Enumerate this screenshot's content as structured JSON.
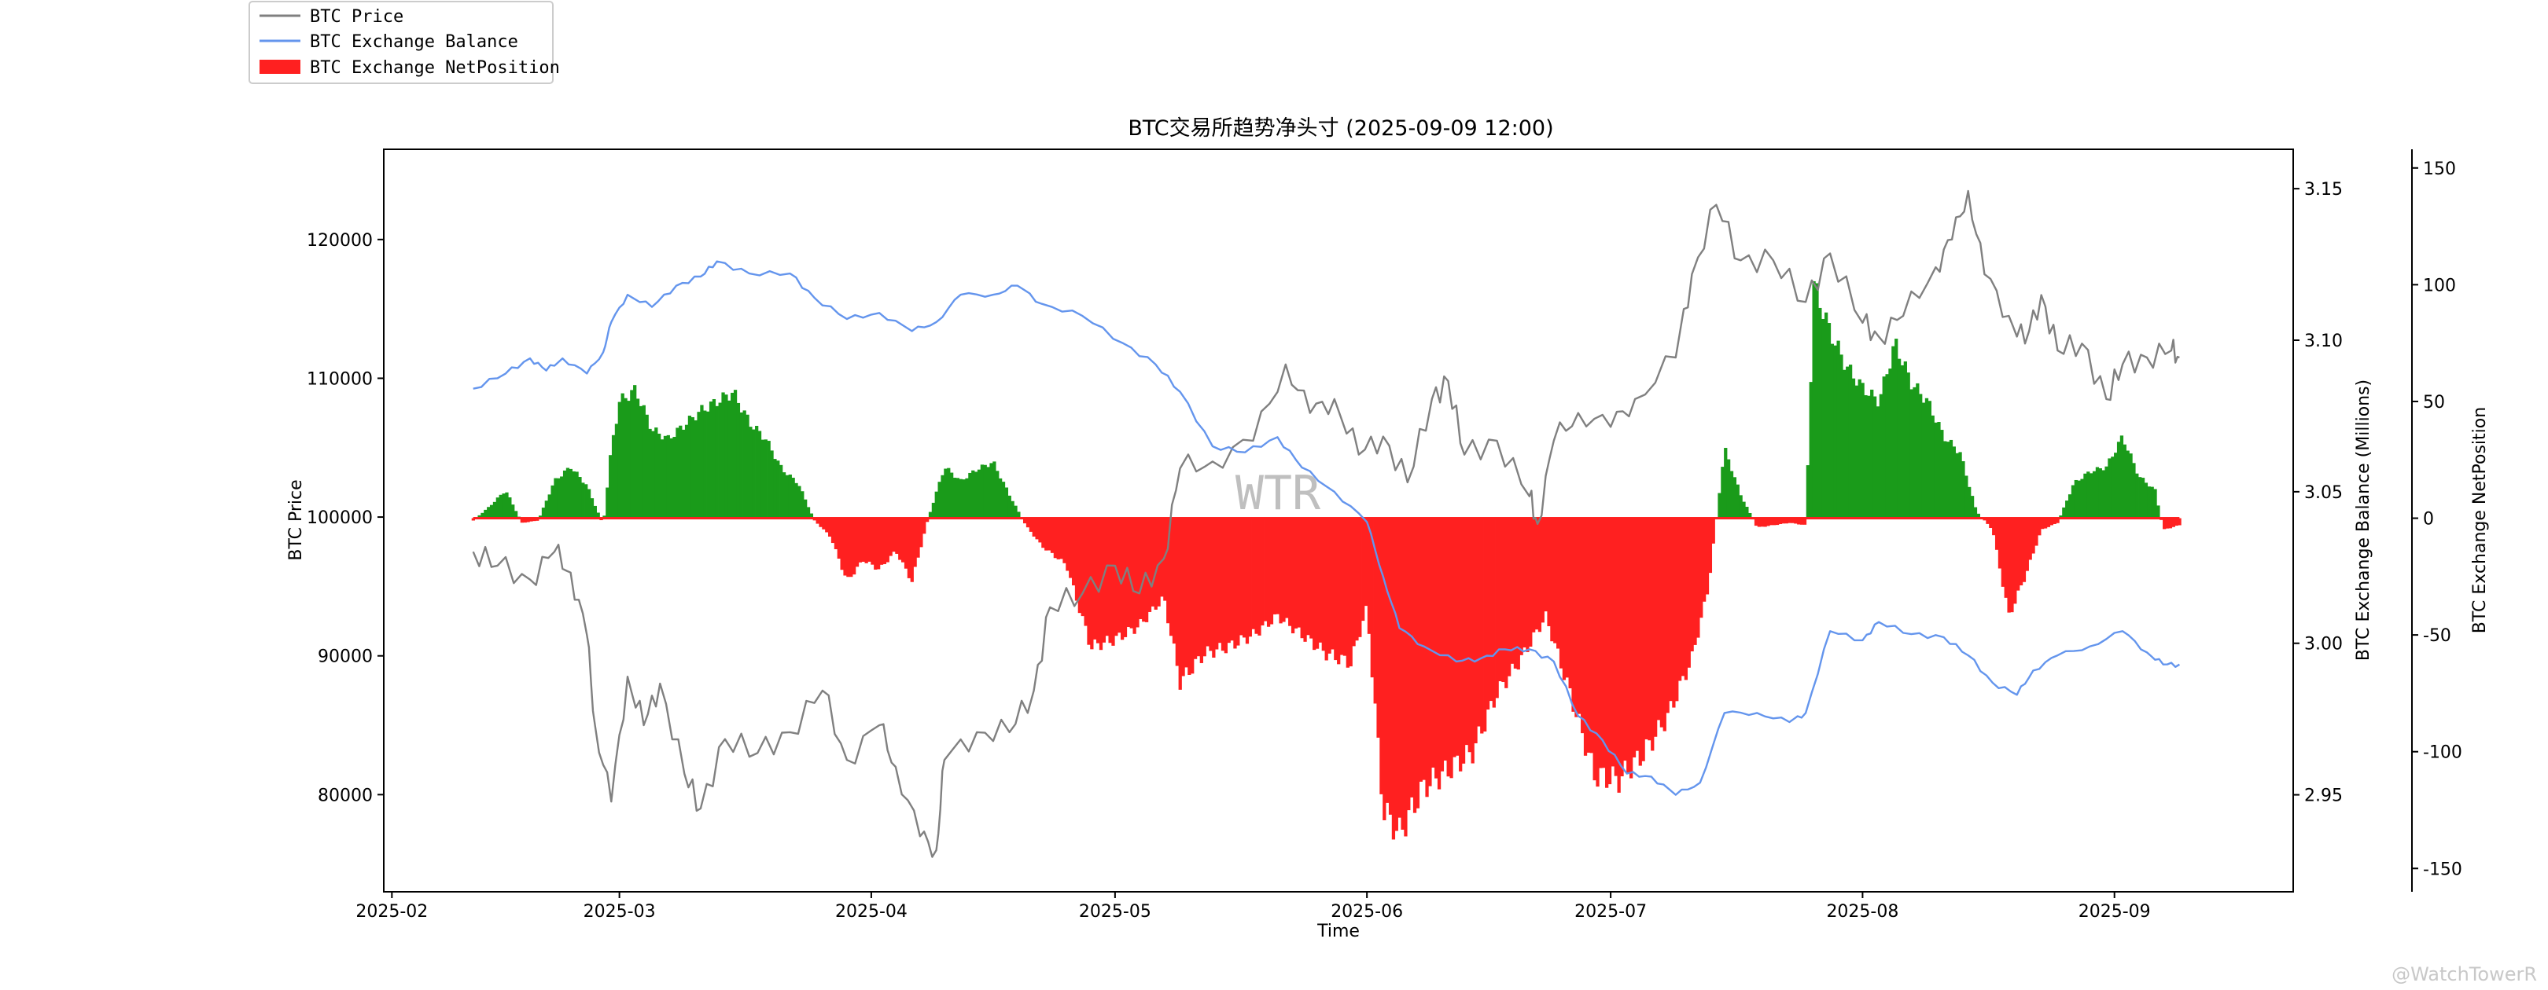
{
  "watermark_center": "WTR",
  "watermark_corner": "@WatchTowerR",
  "chart_data": {
    "type": "line",
    "title": "BTC交易所趋势净头寸 (2025-09-09 12:00)",
    "xlabel": "Time",
    "ylabel_left": "BTC Price",
    "ylabel_right1": "BTC Exchange Balance (Millions)",
    "ylabel_right2": "BTC Exchange NetPosition",
    "x_ticks": [
      "2025-02",
      "2025-03",
      "2025-04",
      "2025-05",
      "2025-06",
      "2025-07",
      "2025-08",
      "2025-09"
    ],
    "y_left_ticks": [
      "80000",
      "90000",
      "100000",
      "110000",
      "120000"
    ],
    "y_right1_ticks": [
      "2.95",
      "3.00",
      "3.05",
      "3.10",
      "3.15"
    ],
    "y_right2_ticks": [
      "-150",
      "-100",
      "-50",
      "0",
      "50",
      "100",
      "150"
    ],
    "xlim": [
      "2025-01-31",
      "2025-09-23"
    ],
    "ylim_left": [
      73000,
      126500
    ],
    "ylim_right1": [
      2.918,
      3.163
    ],
    "ylim_right2": [
      -160,
      158
    ],
    "grid": false,
    "legend_position": "top-left",
    "legend": [
      {
        "name": "BTC Price",
        "kind": "line",
        "color": "#808080"
      },
      {
        "name": "BTC Exchange Balance",
        "kind": "line",
        "color": "#6495ED"
      },
      {
        "name": "BTC Exchange NetPosition",
        "kind": "bar",
        "color": "#ff2020"
      }
    ],
    "colors": {
      "price": "#808080",
      "balance": "#6495ED",
      "positive": "#1a9b1a",
      "negative": "#ff2020"
    },
    "series": [
      {
        "name": "BTC Price",
        "axis": "left",
        "points": [
          [
            "2025-02-11",
            97500
          ],
          [
            "2025-02-14",
            96500
          ],
          [
            "2025-02-18",
            95500
          ],
          [
            "2025-02-21",
            97500
          ],
          [
            "2025-02-23",
            96000
          ],
          [
            "2025-02-25",
            91500
          ],
          [
            "2025-02-26",
            85000
          ],
          [
            "2025-02-28",
            79500
          ],
          [
            "2025-03-02",
            88500
          ],
          [
            "2025-03-04",
            85000
          ],
          [
            "2025-03-06",
            88000
          ],
          [
            "2025-03-09",
            81500
          ],
          [
            "2025-03-11",
            79000
          ],
          [
            "2025-03-14",
            84000
          ],
          [
            "2025-03-18",
            83000
          ],
          [
            "2025-03-22",
            84500
          ],
          [
            "2025-03-26",
            87500
          ],
          [
            "2025-03-29",
            82500
          ],
          [
            "2025-04-02",
            85000
          ],
          [
            "2025-04-04",
            82000
          ],
          [
            "2025-04-07",
            77000
          ],
          [
            "2025-04-09",
            76000
          ],
          [
            "2025-04-10",
            82500
          ],
          [
            "2025-04-14",
            84500
          ],
          [
            "2025-04-18",
            84500
          ],
          [
            "2025-04-21",
            87500
          ],
          [
            "2025-04-23",
            93500
          ],
          [
            "2025-04-27",
            94500
          ],
          [
            "2025-05-01",
            96500
          ],
          [
            "2025-05-04",
            94500
          ],
          [
            "2025-05-07",
            97000
          ],
          [
            "2025-05-09",
            103500
          ],
          [
            "2025-05-13",
            104000
          ],
          [
            "2025-05-18",
            105500
          ],
          [
            "2025-05-22",
            111000
          ],
          [
            "2025-05-25",
            107500
          ],
          [
            "2025-05-28",
            108500
          ],
          [
            "2025-05-31",
            104500
          ],
          [
            "2025-06-03",
            105800
          ],
          [
            "2025-06-06",
            102500
          ],
          [
            "2025-06-09",
            108500
          ],
          [
            "2025-06-11",
            109800
          ],
          [
            "2025-06-13",
            104500
          ],
          [
            "2025-06-17",
            105500
          ],
          [
            "2025-06-21",
            101500
          ],
          [
            "2025-06-22",
            99500
          ],
          [
            "2025-06-24",
            105500
          ],
          [
            "2025-06-27",
            107500
          ],
          [
            "2025-07-01",
            106500
          ],
          [
            "2025-07-04",
            108500
          ],
          [
            "2025-07-09",
            111500
          ],
          [
            "2025-07-11",
            117500
          ],
          [
            "2025-07-14",
            122500
          ],
          [
            "2025-07-17",
            118500
          ],
          [
            "2025-07-21",
            118500
          ],
          [
            "2025-07-25",
            115500
          ],
          [
            "2025-07-28",
            119000
          ],
          [
            "2025-08-01",
            114000
          ],
          [
            "2025-08-03",
            113000
          ],
          [
            "2025-08-06",
            114500
          ],
          [
            "2025-08-10",
            118000
          ],
          [
            "2025-08-12",
            120000
          ],
          [
            "2025-08-14",
            123500
          ],
          [
            "2025-08-16",
            117500
          ],
          [
            "2025-08-19",
            114500
          ],
          [
            "2025-08-21",
            112500
          ],
          [
            "2025-08-23",
            116000
          ],
          [
            "2025-08-25",
            112000
          ],
          [
            "2025-08-28",
            112500
          ],
          [
            "2025-08-31",
            108500
          ],
          [
            "2025-09-02",
            111000
          ],
          [
            "2025-09-05",
            111500
          ],
          [
            "2025-09-08",
            112000
          ],
          [
            "2025-09-09",
            111500
          ]
        ]
      },
      {
        "name": "BTC Exchange Balance",
        "axis": "right1",
        "points": [
          [
            "2025-02-11",
            3.084
          ],
          [
            "2025-02-15",
            3.089
          ],
          [
            "2025-02-18",
            3.094
          ],
          [
            "2025-02-20",
            3.09
          ],
          [
            "2025-02-22",
            3.094
          ],
          [
            "2025-02-25",
            3.089
          ],
          [
            "2025-02-27",
            3.096
          ],
          [
            "2025-02-28",
            3.106
          ],
          [
            "2025-03-02",
            3.115
          ],
          [
            "2025-03-05",
            3.111
          ],
          [
            "2025-03-08",
            3.118
          ],
          [
            "2025-03-11",
            3.121
          ],
          [
            "2025-03-13",
            3.126
          ],
          [
            "2025-03-17",
            3.122
          ],
          [
            "2025-03-22",
            3.122
          ],
          [
            "2025-03-25",
            3.114
          ],
          [
            "2025-03-29",
            3.107
          ],
          [
            "2025-04-02",
            3.109
          ],
          [
            "2025-04-06",
            3.103
          ],
          [
            "2025-04-09",
            3.106
          ],
          [
            "2025-04-12",
            3.115
          ],
          [
            "2025-04-16",
            3.115
          ],
          [
            "2025-04-19",
            3.118
          ],
          [
            "2025-04-22",
            3.112
          ],
          [
            "2025-04-27",
            3.108
          ],
          [
            "2025-05-02",
            3.099
          ],
          [
            "2025-05-06",
            3.092
          ],
          [
            "2025-05-09",
            3.083
          ],
          [
            "2025-05-13",
            3.065
          ],
          [
            "2025-05-17",
            3.063
          ],
          [
            "2025-05-21",
            3.068
          ],
          [
            "2025-05-24",
            3.058
          ],
          [
            "2025-05-28",
            3.05
          ],
          [
            "2025-06-01",
            3.04
          ],
          [
            "2025-06-03",
            3.022
          ],
          [
            "2025-06-05",
            3.005
          ],
          [
            "2025-06-08",
            2.999
          ],
          [
            "2025-06-12",
            2.994
          ],
          [
            "2025-06-15",
            2.995
          ],
          [
            "2025-06-18",
            2.998
          ],
          [
            "2025-06-21",
            2.998
          ],
          [
            "2025-06-24",
            2.994
          ],
          [
            "2025-06-27",
            2.976
          ],
          [
            "2025-06-30",
            2.968
          ],
          [
            "2025-07-03",
            2.957
          ],
          [
            "2025-07-06",
            2.956
          ],
          [
            "2025-07-09",
            2.95
          ],
          [
            "2025-07-12",
            2.954
          ],
          [
            "2025-07-15",
            2.977
          ],
          [
            "2025-07-19",
            2.977
          ],
          [
            "2025-07-23",
            2.974
          ],
          [
            "2025-07-25",
            2.977
          ],
          [
            "2025-07-28",
            3.004
          ],
          [
            "2025-08-01",
            3.001
          ],
          [
            "2025-08-03",
            3.007
          ],
          [
            "2025-08-07",
            3.003
          ],
          [
            "2025-08-11",
            3.002
          ],
          [
            "2025-08-14",
            2.996
          ],
          [
            "2025-08-17",
            2.987
          ],
          [
            "2025-08-20",
            2.983
          ],
          [
            "2025-08-22",
            2.991
          ],
          [
            "2025-08-25",
            2.996
          ],
          [
            "2025-08-29",
            2.999
          ],
          [
            "2025-09-02",
            3.004
          ],
          [
            "2025-09-05",
            2.997
          ],
          [
            "2025-09-07",
            2.993
          ],
          [
            "2025-09-09",
            2.993
          ]
        ]
      },
      {
        "name": "BTC Exchange NetPosition",
        "axis": "right2",
        "points": [
          [
            "2025-02-11",
            -1
          ],
          [
            "2025-02-13",
            5
          ],
          [
            "2025-02-15",
            12
          ],
          [
            "2025-02-17",
            -2
          ],
          [
            "2025-02-19",
            -1
          ],
          [
            "2025-02-21",
            16
          ],
          [
            "2025-02-23",
            22
          ],
          [
            "2025-02-25",
            14
          ],
          [
            "2025-02-27",
            -3
          ],
          [
            "2025-02-28",
            30
          ],
          [
            "2025-03-01",
            50
          ],
          [
            "2025-03-03",
            55
          ],
          [
            "2025-03-05",
            38
          ],
          [
            "2025-03-07",
            34
          ],
          [
            "2025-03-09",
            40
          ],
          [
            "2025-03-11",
            46
          ],
          [
            "2025-03-13",
            50
          ],
          [
            "2025-03-15",
            54
          ],
          [
            "2025-03-17",
            41
          ],
          [
            "2025-03-19",
            34
          ],
          [
            "2025-03-21",
            21
          ],
          [
            "2025-03-23",
            15
          ],
          [
            "2025-03-25",
            -1
          ],
          [
            "2025-03-27",
            -8
          ],
          [
            "2025-03-29",
            -27
          ],
          [
            "2025-03-31",
            -18
          ],
          [
            "2025-04-02",
            -22
          ],
          [
            "2025-04-04",
            -14
          ],
          [
            "2025-04-06",
            -27
          ],
          [
            "2025-04-08",
            0
          ],
          [
            "2025-04-10",
            22
          ],
          [
            "2025-04-12",
            16
          ],
          [
            "2025-04-14",
            21
          ],
          [
            "2025-04-16",
            24
          ],
          [
            "2025-04-18",
            10
          ],
          [
            "2025-04-20",
            -3
          ],
          [
            "2025-04-22",
            -12
          ],
          [
            "2025-04-25",
            -20
          ],
          [
            "2025-04-28",
            -55
          ],
          [
            "2025-05-01",
            -52
          ],
          [
            "2025-05-04",
            -46
          ],
          [
            "2025-05-07",
            -34
          ],
          [
            "2025-05-09",
            -70
          ],
          [
            "2025-05-12",
            -58
          ],
          [
            "2025-05-15",
            -55
          ],
          [
            "2025-05-18",
            -50
          ],
          [
            "2025-05-21",
            -42
          ],
          [
            "2025-05-24",
            -50
          ],
          [
            "2025-05-27",
            -58
          ],
          [
            "2025-05-30",
            -62
          ],
          [
            "2025-06-01",
            -38
          ],
          [
            "2025-06-03",
            -125
          ],
          [
            "2025-06-05",
            -135
          ],
          [
            "2025-06-08",
            -115
          ],
          [
            "2025-06-11",
            -108
          ],
          [
            "2025-06-14",
            -100
          ],
          [
            "2025-06-17",
            -75
          ],
          [
            "2025-06-20",
            -60
          ],
          [
            "2025-06-23",
            -42
          ],
          [
            "2025-06-26",
            -75
          ],
          [
            "2025-06-29",
            -110
          ],
          [
            "2025-07-02",
            -112
          ],
          [
            "2025-07-05",
            -101
          ],
          [
            "2025-07-08",
            -85
          ],
          [
            "2025-07-11",
            -60
          ],
          [
            "2025-07-13",
            -30
          ],
          [
            "2025-07-15",
            30
          ],
          [
            "2025-07-17",
            10
          ],
          [
            "2025-07-19",
            -4
          ],
          [
            "2025-07-21",
            -3
          ],
          [
            "2025-07-23",
            -2
          ],
          [
            "2025-07-25",
            -3
          ],
          [
            "2025-07-26",
            100
          ],
          [
            "2025-07-28",
            80
          ],
          [
            "2025-07-30",
            65
          ],
          [
            "2025-08-01",
            56
          ],
          [
            "2025-08-03",
            50
          ],
          [
            "2025-08-05",
            75
          ],
          [
            "2025-08-07",
            58
          ],
          [
            "2025-08-09",
            50
          ],
          [
            "2025-08-11",
            35
          ],
          [
            "2025-08-13",
            28
          ],
          [
            "2025-08-15",
            3
          ],
          [
            "2025-08-17",
            -5
          ],
          [
            "2025-08-19",
            -42
          ],
          [
            "2025-08-21",
            -25
          ],
          [
            "2025-08-23",
            -5
          ],
          [
            "2025-08-25",
            -2
          ],
          [
            "2025-08-27",
            15
          ],
          [
            "2025-08-29",
            20
          ],
          [
            "2025-08-31",
            22
          ],
          [
            "2025-09-02",
            35
          ],
          [
            "2025-09-04",
            18
          ],
          [
            "2025-09-06",
            12
          ],
          [
            "2025-09-07",
            -5
          ],
          [
            "2025-09-09",
            -3
          ]
        ]
      }
    ]
  }
}
